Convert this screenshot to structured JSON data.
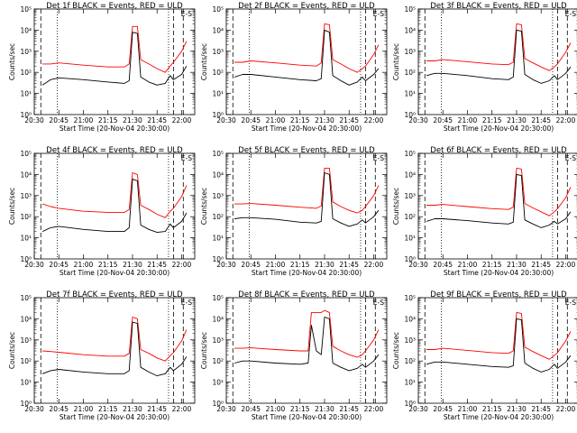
{
  "figure": {
    "background": "#ffffff",
    "colors": {
      "events": "#000000",
      "uld": "#ff0000",
      "axes": "#000000"
    }
  },
  "chart_data": [
    {
      "type": "line",
      "title": "Det 1f BLACK = Events, RED = ULD",
      "corner_label": "E-S",
      "xlabel": "Start Time (20-Nov-04 20:30:00)",
      "ylabel": "Counts/sec",
      "x_tick_labels": [
        "20:30",
        "20:45",
        "21:00",
        "21:15",
        "21:30",
        "21:45",
        "22:00"
      ],
      "y_tick_labels": [
        "10⁰",
        "10¹",
        "10²",
        "10³",
        "10⁴",
        "10⁵"
      ],
      "y_scale": "log",
      "ylim": [
        1,
        100000
      ],
      "x": [
        "20:35",
        "20:40",
        "20:45",
        "21:00",
        "21:15",
        "21:25",
        "21:28",
        "21:30",
        "21:33",
        "21:35",
        "21:40",
        "21:45",
        "21:50",
        "21:53",
        "21:55",
        "22:00",
        "22:03"
      ],
      "series": [
        {
          "name": "BLACK = Events",
          "values": [
            25,
            45,
            55,
            45,
            35,
            30,
            40,
            8000,
            7000,
            60,
            35,
            25,
            30,
            70,
            45,
            80,
            200
          ]
        },
        {
          "name": "RED = ULD",
          "values": [
            250,
            250,
            280,
            220,
            180,
            180,
            250,
            15000,
            15000,
            400,
            250,
            150,
            100,
            200,
            300,
            1000,
            3000
          ]
        }
      ],
      "vlines": [
        {
          "x": "20:34",
          "style": "dashed"
        },
        {
          "x": "20:44",
          "style": "dotted"
        },
        {
          "x": "21:52",
          "style": "dotted"
        },
        {
          "x": "21:55",
          "style": "dashed"
        },
        {
          "x": "22:01",
          "style": "dashed"
        }
      ]
    },
    {
      "type": "line",
      "title": "Det 2f BLACK = Events, RED = ULD",
      "corner_label": "E-S",
      "xlabel": "Start Time (20-Nov-04 20:30:00)",
      "ylabel": "Counts/sec",
      "x_tick_labels": [
        "20:30",
        "20:45",
        "21:00",
        "21:15",
        "21:30",
        "21:45",
        "22:00"
      ],
      "y_tick_labels": [
        "10⁰",
        "10¹",
        "10²",
        "10³",
        "10⁴",
        "10⁵"
      ],
      "y_scale": "log",
      "ylim": [
        1,
        100000
      ],
      "x": [
        "20:35",
        "20:40",
        "20:45",
        "21:00",
        "21:15",
        "21:25",
        "21:28",
        "21:30",
        "21:33",
        "21:35",
        "21:40",
        "21:45",
        "21:50",
        "21:53",
        "21:55",
        "22:00",
        "22:03"
      ],
      "series": [
        {
          "name": "BLACK = Events",
          "values": [
            60,
            80,
            80,
            60,
            45,
            40,
            50,
            10000,
            8000,
            70,
            40,
            25,
            35,
            60,
            40,
            80,
            150
          ]
        },
        {
          "name": "RED = ULD",
          "values": [
            300,
            300,
            350,
            280,
            220,
            200,
            280,
            20000,
            18000,
            400,
            250,
            150,
            100,
            150,
            200,
            700,
            2000
          ]
        }
      ],
      "vlines": [
        {
          "x": "20:34",
          "style": "dashed"
        },
        {
          "x": "20:44",
          "style": "dotted"
        },
        {
          "x": "21:52",
          "style": "dotted"
        },
        {
          "x": "21:55",
          "style": "dashed"
        },
        {
          "x": "22:01",
          "style": "dashed"
        }
      ]
    },
    {
      "type": "line",
      "title": "Det 3f BLACK = Events, RED = ULD",
      "corner_label": "E-S",
      "xlabel": "Start Time (20-Nov-04 20:30:00)",
      "ylabel": "Counts/sec",
      "x_tick_labels": [
        "20:30",
        "20:45",
        "21:00",
        "21:15",
        "21:30",
        "21:45",
        "22:00"
      ],
      "y_tick_labels": [
        "10⁰",
        "10¹",
        "10²",
        "10³",
        "10⁴",
        "10⁵"
      ],
      "y_scale": "log",
      "ylim": [
        1,
        100000
      ],
      "x": [
        "20:35",
        "20:40",
        "20:45",
        "21:00",
        "21:15",
        "21:25",
        "21:28",
        "21:30",
        "21:33",
        "21:35",
        "21:40",
        "21:45",
        "21:50",
        "21:53",
        "21:55",
        "22:00",
        "22:03"
      ],
      "series": [
        {
          "name": "BLACK = Events",
          "values": [
            70,
            90,
            90,
            70,
            50,
            45,
            60,
            10000,
            9000,
            80,
            45,
            30,
            40,
            70,
            45,
            90,
            180
          ]
        },
        {
          "name": "RED = ULD",
          "values": [
            350,
            350,
            400,
            320,
            250,
            230,
            300,
            20000,
            18000,
            450,
            280,
            180,
            120,
            180,
            250,
            900,
            2500
          ]
        }
      ],
      "vlines": [
        {
          "x": "20:34",
          "style": "dashed"
        },
        {
          "x": "20:44",
          "style": "dotted"
        },
        {
          "x": "21:52",
          "style": "dotted"
        },
        {
          "x": "21:55",
          "style": "dashed"
        },
        {
          "x": "22:01",
          "style": "dashed"
        }
      ]
    },
    {
      "type": "line",
      "title": "Det 4f BLACK = Events, RED = ULD",
      "corner_label": "E-S",
      "xlabel": "Start Time (20-Nov-04 20:30:00)",
      "ylabel": "Counts/sec",
      "x_tick_labels": [
        "20:30",
        "20:45",
        "21:00",
        "21:15",
        "21:30",
        "21:45",
        "22:00"
      ],
      "y_tick_labels": [
        "10⁰",
        "10¹",
        "10²",
        "10³",
        "10⁴",
        "10⁵"
      ],
      "y_scale": "log",
      "ylim": [
        1,
        100000
      ],
      "x": [
        "20:35",
        "20:40",
        "20:45",
        "21:00",
        "21:15",
        "21:25",
        "21:28",
        "21:30",
        "21:33",
        "21:35",
        "21:40",
        "21:45",
        "21:50",
        "21:53",
        "21:55",
        "22:00",
        "22:03"
      ],
      "series": [
        {
          "name": "BLACK = Events",
          "values": [
            20,
            30,
            35,
            25,
            20,
            20,
            30,
            6000,
            5000,
            40,
            25,
            18,
            20,
            45,
            30,
            60,
            150
          ]
        },
        {
          "name": "RED = ULD",
          "values": [
            400,
            300,
            250,
            180,
            160,
            160,
            220,
            12000,
            10000,
            350,
            220,
            130,
            90,
            180,
            250,
            900,
            3000
          ]
        }
      ],
      "vlines": [
        {
          "x": "20:34",
          "style": "dashed"
        },
        {
          "x": "20:44",
          "style": "dotted"
        },
        {
          "x": "21:52",
          "style": "dotted"
        },
        {
          "x": "21:55",
          "style": "dashed"
        },
        {
          "x": "22:01",
          "style": "dashed"
        }
      ]
    },
    {
      "type": "line",
      "title": "Det 5f BLACK = Events, RED = ULD",
      "corner_label": "E-S",
      "xlabel": "Start Time (20-Nov-04 20:30:00)",
      "ylabel": "Counts/sec",
      "x_tick_labels": [
        "20:30",
        "20:45",
        "21:00",
        "21:15",
        "21:30",
        "21:45",
        "22:00"
      ],
      "y_tick_labels": [
        "10⁰",
        "10¹",
        "10²",
        "10³",
        "10⁴",
        "10⁵"
      ],
      "y_scale": "log",
      "ylim": [
        1,
        100000
      ],
      "x": [
        "20:35",
        "20:40",
        "20:45",
        "21:00",
        "21:15",
        "21:25",
        "21:28",
        "21:30",
        "21:33",
        "21:35",
        "21:40",
        "21:45",
        "21:50",
        "21:53",
        "21:55",
        "22:00",
        "22:03"
      ],
      "series": [
        {
          "name": "BLACK = Events",
          "values": [
            80,
            90,
            90,
            75,
            55,
            50,
            60,
            12000,
            10000,
            80,
            50,
            35,
            45,
            70,
            50,
            100,
            200
          ]
        },
        {
          "name": "RED = ULD",
          "values": [
            400,
            400,
            420,
            350,
            280,
            250,
            320,
            20000,
            20000,
            500,
            300,
            200,
            150,
            200,
            300,
            1000,
            3000
          ]
        }
      ],
      "vlines": [
        {
          "x": "20:34",
          "style": "dashed"
        },
        {
          "x": "20:44",
          "style": "dotted"
        },
        {
          "x": "21:52",
          "style": "dotted"
        },
        {
          "x": "21:55",
          "style": "dashed"
        },
        {
          "x": "22:01",
          "style": "dashed"
        }
      ]
    },
    {
      "type": "line",
      "title": "Det 6f BLACK = Events, RED = ULD",
      "corner_label": "E-S",
      "xlabel": "Start Time (20-Nov-04 20:30:00)",
      "ylabel": "Counts/sec",
      "x_tick_labels": [
        "20:30",
        "20:45",
        "21:00",
        "21:15",
        "21:30",
        "21:45",
        "22:00"
      ],
      "y_tick_labels": [
        "10⁰",
        "10¹",
        "10²",
        "10³",
        "10⁴",
        "10⁵"
      ],
      "y_scale": "log",
      "ylim": [
        1,
        100000
      ],
      "x": [
        "20:35",
        "20:40",
        "20:45",
        "21:00",
        "21:15",
        "21:25",
        "21:28",
        "21:30",
        "21:33",
        "21:35",
        "21:40",
        "21:45",
        "21:50",
        "21:53",
        "21:55",
        "22:00",
        "22:03"
      ],
      "series": [
        {
          "name": "BLACK = Events",
          "values": [
            60,
            80,
            80,
            65,
            50,
            45,
            55,
            10000,
            9000,
            70,
            45,
            30,
            40,
            60,
            45,
            80,
            170
          ]
        },
        {
          "name": "RED = ULD",
          "values": [
            350,
            350,
            380,
            300,
            240,
            220,
            280,
            20000,
            18000,
            420,
            260,
            170,
            110,
            170,
            240,
            800,
            2500
          ]
        }
      ],
      "vlines": [
        {
          "x": "20:34",
          "style": "dashed"
        },
        {
          "x": "20:44",
          "style": "dotted"
        },
        {
          "x": "21:52",
          "style": "dotted"
        },
        {
          "x": "21:55",
          "style": "dashed"
        },
        {
          "x": "22:01",
          "style": "dashed"
        }
      ]
    },
    {
      "type": "line",
      "title": "Det 7f BLACK = Events, RED = ULD",
      "corner_label": "E-S",
      "xlabel": "Start Time (20-Nov-04 20:30:00)",
      "ylabel": "Counts/sec",
      "x_tick_labels": [
        "20:30",
        "20:45",
        "21:00",
        "21:15",
        "21:30",
        "21:45",
        "22:00"
      ],
      "y_tick_labels": [
        "10⁰",
        "10¹",
        "10²",
        "10³",
        "10⁴",
        "10⁵"
      ],
      "y_scale": "log",
      "ylim": [
        1,
        100000
      ],
      "x": [
        "20:35",
        "20:40",
        "20:45",
        "21:00",
        "21:15",
        "21:25",
        "21:28",
        "21:30",
        "21:33",
        "21:35",
        "21:40",
        "21:45",
        "21:50",
        "21:53",
        "21:55",
        "22:00",
        "22:03"
      ],
      "series": [
        {
          "name": "BLACK = Events",
          "values": [
            25,
            35,
            40,
            30,
            25,
            25,
            35,
            7000,
            6000,
            50,
            30,
            20,
            25,
            50,
            35,
            70,
            160
          ]
        },
        {
          "name": "RED = ULD",
          "values": [
            300,
            280,
            260,
            200,
            170,
            170,
            230,
            12000,
            10000,
            350,
            230,
            140,
            100,
            180,
            250,
            900,
            3000
          ]
        }
      ],
      "vlines": [
        {
          "x": "20:34",
          "style": "dashed"
        },
        {
          "x": "20:44",
          "style": "dotted"
        },
        {
          "x": "21:52",
          "style": "dotted"
        },
        {
          "x": "21:55",
          "style": "dashed"
        },
        {
          "x": "22:01",
          "style": "dashed"
        }
      ]
    },
    {
      "type": "line",
      "title": "Det 8f BLACK = Events, RED = ULD",
      "corner_label": "E-S",
      "xlabel": "Start Time (20-Nov-04 20:30:00)",
      "ylabel": "Counts/sec",
      "x_tick_labels": [
        "20:30",
        "20:45",
        "21:00",
        "21:15",
        "21:30",
        "21:45",
        "22:00"
      ],
      "y_tick_labels": [
        "10⁰",
        "10¹",
        "10²",
        "10³",
        "10⁴",
        "10⁵"
      ],
      "y_scale": "log",
      "ylim": [
        1,
        100000
      ],
      "x": [
        "20:35",
        "20:40",
        "20:45",
        "21:00",
        "21:15",
        "21:20",
        "21:22",
        "21:25",
        "21:28",
        "21:30",
        "21:33",
        "21:35",
        "21:40",
        "21:45",
        "21:50",
        "21:53",
        "21:55",
        "22:00",
        "22:03"
      ],
      "series": [
        {
          "name": "BLACK = Events",
          "values": [
            80,
            100,
            100,
            80,
            70,
            80,
            5000,
            300,
            200,
            12000,
            10000,
            80,
            50,
            35,
            45,
            70,
            50,
            100,
            200
          ]
        },
        {
          "name": "RED = ULD",
          "values": [
            400,
            400,
            420,
            350,
            300,
            300,
            20000,
            20000,
            20000,
            25000,
            20000,
            500,
            300,
            200,
            150,
            200,
            300,
            1000,
            3000
          ]
        }
      ],
      "vlines": [
        {
          "x": "20:34",
          "style": "dashed"
        },
        {
          "x": "20:44",
          "style": "dotted"
        },
        {
          "x": "21:52",
          "style": "dotted"
        },
        {
          "x": "21:55",
          "style": "dashed"
        },
        {
          "x": "22:01",
          "style": "dashed"
        }
      ]
    },
    {
      "type": "line",
      "title": "Det 9f BLACK = Events, RED = ULD",
      "corner_label": "E-S",
      "xlabel": "Start Time (20-Nov-04 20:30:00)",
      "ylabel": "Counts/sec",
      "x_tick_labels": [
        "20:30",
        "20:45",
        "21:00",
        "21:15",
        "21:30",
        "21:45",
        "22:00"
      ],
      "y_tick_labels": [
        "10⁰",
        "10¹",
        "10²",
        "10³",
        "10⁴",
        "10⁵"
      ],
      "y_scale": "log",
      "ylim": [
        1,
        100000
      ],
      "x": [
        "20:35",
        "20:40",
        "20:45",
        "21:00",
        "21:15",
        "21:25",
        "21:28",
        "21:30",
        "21:33",
        "21:35",
        "21:40",
        "21:45",
        "21:50",
        "21:53",
        "21:55",
        "22:00",
        "22:03"
      ],
      "series": [
        {
          "name": "BLACK = Events",
          "values": [
            70,
            90,
            90,
            70,
            55,
            50,
            60,
            10000,
            9000,
            80,
            45,
            30,
            40,
            70,
            45,
            90,
            180
          ]
        },
        {
          "name": "RED = ULD",
          "values": [
            350,
            350,
            400,
            320,
            250,
            230,
            300,
            20000,
            18000,
            450,
            280,
            180,
            120,
            180,
            250,
            900,
            2500
          ]
        }
      ],
      "vlines": [
        {
          "x": "20:34",
          "style": "dashed"
        },
        {
          "x": "20:44",
          "style": "dotted"
        },
        {
          "x": "21:52",
          "style": "dotted"
        },
        {
          "x": "21:55",
          "style": "dashed"
        },
        {
          "x": "22:01",
          "style": "dashed"
        }
      ]
    }
  ]
}
